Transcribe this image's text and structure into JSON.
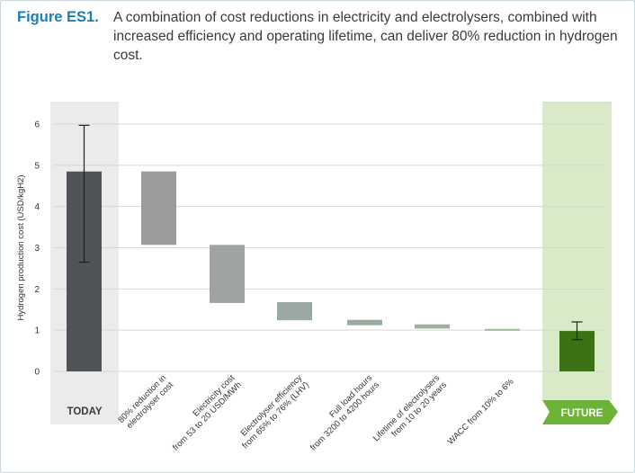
{
  "figure": {
    "label": "Figure ES1.",
    "caption": "A combination of cost reductions in electricity and electrolysers, combined with increased efficiency and operating lifetime, can deliver 80% reduction in hydrogen cost."
  },
  "colors": {
    "today_bar": "#505459",
    "today_band": "#ebebeb",
    "future_band": "#d9eac9",
    "future_bar": "#3b7013",
    "future_tag": "#6bb437",
    "grid": "#d5d5d5"
  },
  "chart_data": {
    "type": "waterfall",
    "title": "",
    "xlabel": "",
    "ylabel": "Hydrogen production cost (USD/kgH2)",
    "ylim": [
      0,
      6
    ],
    "yticks": [
      0,
      1,
      2,
      3,
      4,
      5,
      6
    ],
    "grid": true,
    "today": {
      "label": "TODAY",
      "value": 4.85,
      "error_low": 2.65,
      "error_high": 5.97
    },
    "steps": [
      {
        "label_lines": [
          "80% reduction in",
          "electrolyser cost"
        ],
        "from": 4.85,
        "to": 3.07,
        "color": "#9a9b9c"
      },
      {
        "label_lines": [
          "Electricity cost",
          "from 53 to 20 USD/MWh"
        ],
        "from": 3.07,
        "to": 1.66,
        "color": "#9fa3a3"
      },
      {
        "label_lines": [
          "Electrolyser efficiency",
          "from 65% to 76% (LHV)"
        ],
        "from": 1.68,
        "to": 1.24,
        "color": "#9aa8a4"
      },
      {
        "label_lines": [
          "Full load hours",
          "from 3200 to 4200 hours"
        ],
        "from": 1.25,
        "to": 1.12,
        "color": "#9aaca0"
      },
      {
        "label_lines": [
          "Lifetime of electrolysers",
          "from 10 to 20 years"
        ],
        "from": 1.14,
        "to": 1.04,
        "color": "#9cb09c"
      },
      {
        "label_lines": [
          "WACC from 10% to 6%"
        ],
        "from": 1.03,
        "to": 0.99,
        "color": "#9fbc8d"
      }
    ],
    "future": {
      "label": "FUTURE",
      "value": 0.98,
      "error_low": 0.77,
      "error_high": 1.2
    }
  }
}
